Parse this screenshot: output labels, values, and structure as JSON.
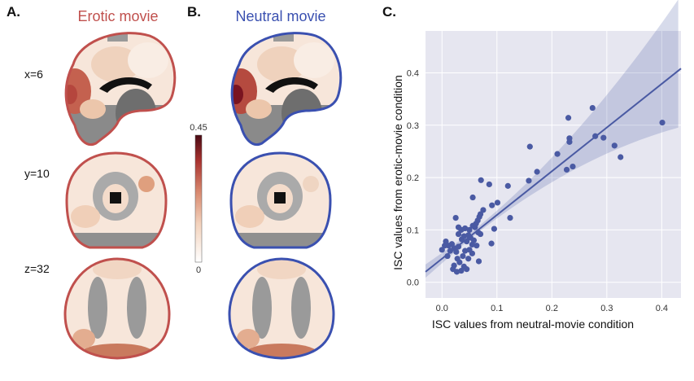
{
  "panels": {
    "a": {
      "label": "A.",
      "title": "Erotic movie",
      "color": "#c0504d"
    },
    "b": {
      "label": "B.",
      "title": "Neutral movie",
      "color": "#3a50b0"
    },
    "c": {
      "label": "C."
    }
  },
  "slices": [
    "x=6",
    "y=10",
    "z=32"
  ],
  "colorbar": {
    "max_label": "0.45",
    "min_label": "0",
    "colormap": [
      "#ffffff",
      "#f3d3bd",
      "#d98a70",
      "#a8322f",
      "#4a0a14"
    ]
  },
  "chart_data": {
    "type": "scatter",
    "xlabel": "ISC values from neutral-movie condition",
    "ylabel": "ISC values from erotic-movie condition",
    "xlim": [
      -0.03,
      0.435
    ],
    "ylim": [
      -0.03,
      0.48
    ],
    "xticks": [
      "0.0",
      "0.1",
      "0.2",
      "0.3",
      "0.4"
    ],
    "yticks": [
      "0.0",
      "0.1",
      "0.2",
      "0.3",
      "0.4"
    ],
    "grid": true,
    "background": "#e6e6f0",
    "point_color": "#4a5aa3",
    "regression": {
      "slope": 0.835,
      "intercept": 0.045,
      "ci_band": true
    },
    "points": [
      [
        0.401,
        0.305
      ],
      [
        0.274,
        0.333
      ],
      [
        0.23,
        0.314
      ],
      [
        0.232,
        0.275
      ],
      [
        0.232,
        0.268
      ],
      [
        0.279,
        0.279
      ],
      [
        0.294,
        0.276
      ],
      [
        0.314,
        0.261
      ],
      [
        0.325,
        0.239
      ],
      [
        0.21,
        0.245
      ],
      [
        0.16,
        0.259
      ],
      [
        0.227,
        0.215
      ],
      [
        0.238,
        0.221
      ],
      [
        0.173,
        0.211
      ],
      [
        0.158,
        0.194
      ],
      [
        0.12,
        0.184
      ],
      [
        0.071,
        0.195
      ],
      [
        0.086,
        0.187
      ],
      [
        0.056,
        0.162
      ],
      [
        0.101,
        0.152
      ],
      [
        0.091,
        0.147
      ],
      [
        0.075,
        0.138
      ],
      [
        0.124,
        0.123
      ],
      [
        0.025,
        0.123
      ],
      [
        0.095,
        0.102
      ],
      [
        0.09,
        0.074
      ],
      [
        0.067,
        0.04
      ],
      [
        0.0,
        0.062
      ],
      [
        0.007,
        0.078
      ],
      [
        0.012,
        0.07
      ],
      [
        0.018,
        0.073
      ],
      [
        0.01,
        0.05
      ],
      [
        0.022,
        0.065
      ],
      [
        0.026,
        0.058
      ],
      [
        0.03,
        0.068
      ],
      [
        0.028,
        0.045
      ],
      [
        0.032,
        0.038
      ],
      [
        0.022,
        0.032
      ],
      [
        0.02,
        0.025
      ],
      [
        0.027,
        0.02
      ],
      [
        0.035,
        0.022
      ],
      [
        0.04,
        0.03
      ],
      [
        0.045,
        0.025
      ],
      [
        0.048,
        0.045
      ],
      [
        0.038,
        0.05
      ],
      [
        0.042,
        0.06
      ],
      [
        0.05,
        0.062
      ],
      [
        0.055,
        0.072
      ],
      [
        0.045,
        0.078
      ],
      [
        0.036,
        0.082
      ],
      [
        0.03,
        0.092
      ],
      [
        0.035,
        0.1
      ],
      [
        0.03,
        0.105
      ],
      [
        0.042,
        0.103
      ],
      [
        0.05,
        0.1
      ],
      [
        0.056,
        0.108
      ],
      [
        0.06,
        0.105
      ],
      [
        0.062,
        0.112
      ],
      [
        0.065,
        0.118
      ],
      [
        0.068,
        0.125
      ],
      [
        0.07,
        0.13
      ],
      [
        0.066,
        0.095
      ],
      [
        0.07,
        0.092
      ],
      [
        0.058,
        0.08
      ],
      [
        0.063,
        0.07
      ],
      [
        0.055,
        0.055
      ],
      [
        0.048,
        0.09
      ],
      [
        0.04,
        0.088
      ],
      [
        0.052,
        0.085
      ],
      [
        0.015,
        0.06
      ],
      [
        0.005,
        0.07
      ]
    ]
  }
}
